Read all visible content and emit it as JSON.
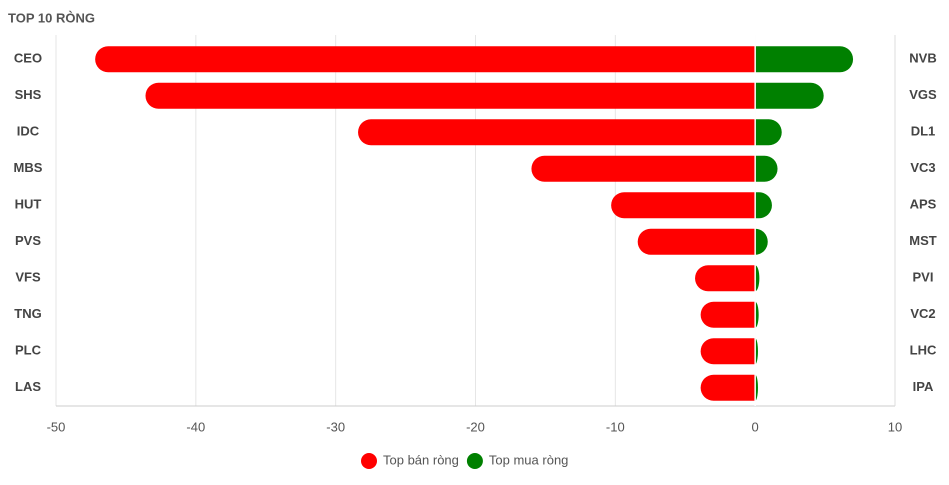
{
  "chart_data": {
    "type": "diverging-bar",
    "title": "TOP 10 RÒNG",
    "categories": [
      "CEO",
      "SHS",
      "IDC",
      "MBS",
      "HUT",
      "PVS",
      "VFS",
      "TNG",
      "PLC",
      "LAS"
    ],
    "y2categories": [
      "NVB",
      "VGS",
      "DL1",
      "VC3",
      "APS",
      "MST",
      "PVI",
      "VC2",
      "LHC",
      "IPA"
    ],
    "series": [
      {
        "name": "Top bán ròng",
        "color": "#ff0000",
        "values": [
          -47.2,
          -43.6,
          -28.4,
          -16.0,
          -10.3,
          -8.4,
          -4.3,
          -3.9,
          -3.9,
          -3.9
        ]
      },
      {
        "name": "Top mua ròng",
        "color": "#008000",
        "values": [
          7.0,
          4.9,
          1.9,
          1.6,
          1.2,
          0.9,
          0.3,
          0.25,
          0.2,
          0.2
        ]
      }
    ],
    "xlim": [
      -50,
      10
    ],
    "xticks": [
      -50,
      -40,
      -30,
      -20,
      -10,
      0,
      10
    ],
    "grid": true
  }
}
